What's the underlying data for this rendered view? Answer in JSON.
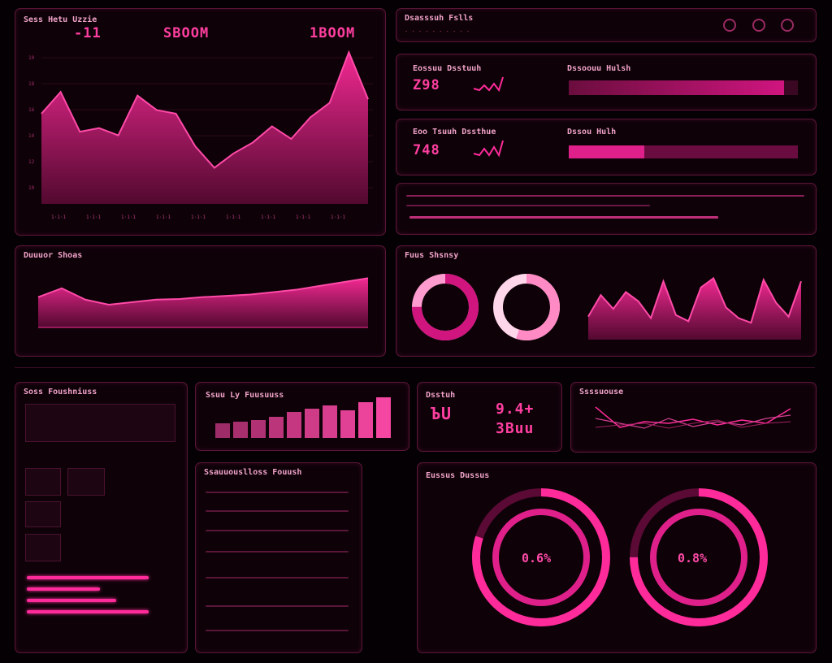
{
  "top_left": {
    "title": "Sess Hetu Uzzie",
    "stat_a": "-11",
    "stat_b": "SBOOM",
    "stat_c": "1BOOM",
    "ticks": [
      "1·1·1",
      "1·1·1",
      "1·1·1",
      "1·1·1",
      "1·1·1",
      "1·1·1",
      "1·1·1",
      "1·1·1",
      "1·1·1"
    ],
    "yticks": [
      "10",
      "18",
      "16",
      "14",
      "12",
      "10"
    ],
    "series": [
      50,
      62,
      40,
      42,
      38,
      60,
      52,
      50,
      32,
      20,
      28,
      34,
      43,
      36,
      48,
      56,
      84,
      58
    ]
  },
  "header_right": {
    "title": "Dsasssuh Fslls"
  },
  "metric1": {
    "title": "Eossuu Dsstuuh",
    "value": "Z98",
    "bar_title": "Dssoouu Hulsh",
    "fill": 0.94
  },
  "metric2": {
    "title": "Eoo Tsuuh Dssthue",
    "value": "748",
    "bar_title": "Dssou Hulh",
    "fill": 0.33
  },
  "middle_left": {
    "title": "Duuuor Shoas",
    "series": [
      48,
      62,
      44,
      36,
      40,
      44,
      45,
      48,
      50,
      52,
      56,
      60,
      66,
      72,
      78
    ]
  },
  "middle_right": {
    "title": "Fuus Shsnsy",
    "donut1": 0.75,
    "donut2": 0.55,
    "series": [
      30,
      58,
      40,
      62,
      50,
      28,
      76,
      32,
      24,
      68,
      80,
      42,
      28,
      22,
      78,
      48,
      30,
      76
    ]
  },
  "bottom_left": {
    "title": "Soss Foushniuss"
  },
  "bar_panel": {
    "title": "Ssuu Ly Fuusuuss",
    "values": [
      18,
      20,
      22,
      26,
      32,
      36,
      40,
      34,
      44,
      50
    ]
  },
  "stat_panel": {
    "title": "Dsstuh",
    "value_a": "ЪU",
    "value_b": "9.4+",
    "value_c": "3Buu"
  },
  "lines_panel": {
    "title": "Ssssuouse"
  },
  "table_panel": {
    "title": "Ssauuouslloss Fouush"
  },
  "rings_panel": {
    "title": "Eussus Dussus",
    "pct1": "0.6%",
    "pct2": "0.8%",
    "ring1": 0.8,
    "ring2": 0.75
  },
  "colors": {
    "accent": "#ff2b9a",
    "fill": "#c8107a",
    "bg": "#050003"
  }
}
